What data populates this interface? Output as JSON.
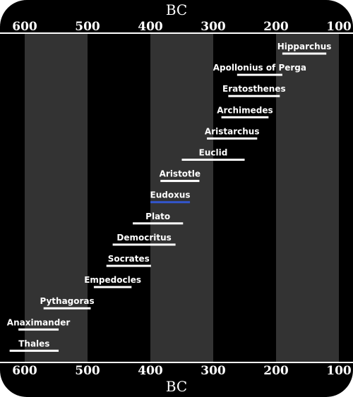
{
  "era_label_top": "BC",
  "era_label_bottom": "BC",
  "axis": {
    "min": 100,
    "max": 600,
    "reversed": true,
    "ticks": [
      600,
      500,
      400,
      300,
      200,
      100
    ],
    "tick_labels": [
      "600",
      "500",
      "400",
      "300",
      "200",
      "100"
    ]
  },
  "colors": {
    "background": "#000000",
    "band": "#333333",
    "bar": "#ffffff",
    "highlight": "#3355cc",
    "text": "#ffffff"
  },
  "chart_data": {
    "type": "timeline",
    "xlabel": "BC",
    "xlim": [
      650,
      100
    ],
    "bands": [
      [
        600,
        500
      ],
      [
        400,
        300
      ],
      [
        200,
        100
      ]
    ],
    "series": [
      {
        "name": "Hipparchus",
        "start": 190,
        "end": 120,
        "highlight": false
      },
      {
        "name": "Apollonius of Perga",
        "start": 262,
        "end": 190,
        "highlight": false
      },
      {
        "name": "Eratosthenes",
        "start": 276,
        "end": 194,
        "highlight": false
      },
      {
        "name": "Archimedes",
        "start": 287,
        "end": 212,
        "highlight": false
      },
      {
        "name": "Aristarchus",
        "start": 310,
        "end": 230,
        "highlight": false
      },
      {
        "name": "Euclid",
        "start": 350,
        "end": 250,
        "highlight": false
      },
      {
        "name": "Aristotle",
        "start": 384,
        "end": 322,
        "highlight": false
      },
      {
        "name": "Eudoxus",
        "start": 400,
        "end": 337,
        "highlight": true
      },
      {
        "name": "Plato",
        "start": 428,
        "end": 348,
        "highlight": false
      },
      {
        "name": "Democritus",
        "start": 460,
        "end": 360,
        "highlight": false
      },
      {
        "name": "Socrates",
        "start": 470,
        "end": 399,
        "highlight": false
      },
      {
        "name": "Empedocles",
        "start": 490,
        "end": 430,
        "highlight": false
      },
      {
        "name": "Pythagoras",
        "start": 570,
        "end": 495,
        "highlight": false
      },
      {
        "name": "Anaximander",
        "start": 610,
        "end": 546,
        "highlight": false
      },
      {
        "name": "Thales",
        "start": 624,
        "end": 546,
        "highlight": false
      }
    ]
  }
}
